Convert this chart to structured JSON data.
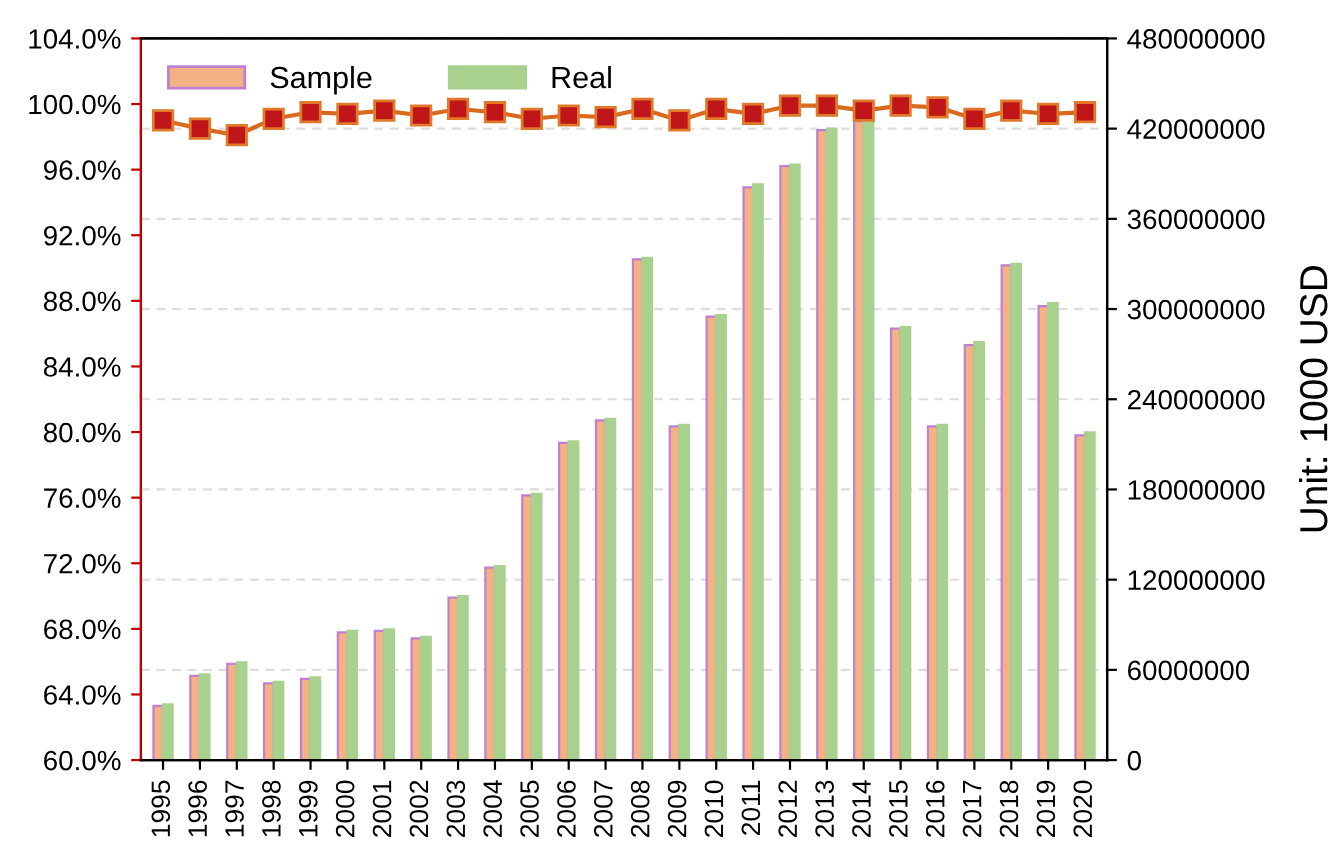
{
  "chart_data": {
    "type": "bar",
    "y2label": "Unit: 1000 USD",
    "categories": [
      "1995",
      "1996",
      "1997",
      "1998",
      "1999",
      "2000",
      "2001",
      "2002",
      "2003",
      "2004",
      "2005",
      "2006",
      "2007",
      "2008",
      "2009",
      "2010",
      "2011",
      "2012",
      "2013",
      "2014",
      "2015",
      "2016",
      "2017",
      "2018",
      "2019",
      "2020"
    ],
    "series": [
      {
        "name": "Sample",
        "axis": "y2",
        "color": "#f4b183",
        "values": [
          36000000,
          56000000,
          64000000,
          51000000,
          54000000,
          85000000,
          86000000,
          81000000,
          108000000,
          128000000,
          176000000,
          211000000,
          226000000,
          333000000,
          222000000,
          295000000,
          381000000,
          395000000,
          419000000,
          425000000,
          287000000,
          222000000,
          276000000,
          329000000,
          302000000,
          216000000
        ]
      },
      {
        "name": "Real",
        "axis": "y2",
        "color": "#a9d18e",
        "values": [
          37000000,
          57000000,
          65000000,
          52000000,
          55000000,
          86000000,
          87000000,
          82000000,
          109000000,
          129000000,
          177000000,
          212000000,
          227000000,
          334000000,
          223000000,
          296000000,
          383000000,
          396000000,
          420000000,
          427000000,
          288000000,
          223000000,
          278000000,
          330000000,
          304000000,
          218000000
        ]
      },
      {
        "type": "line",
        "color": "#c0161a",
        "marker": "square",
        "values": [
          99.0,
          98.5,
          98.1,
          99.1,
          99.5,
          99.4,
          99.6,
          99.3,
          99.7,
          99.5,
          99.1,
          99.3,
          99.2,
          99.7,
          99.0,
          99.7,
          99.4,
          99.9,
          99.9,
          99.6,
          99.9,
          99.8,
          99.1,
          99.6,
          99.4,
          99.5
        ]
      }
    ],
    "ylim": [
      60,
      104
    ],
    "yticks": [
      {
        "value": 60,
        "label": "60.0%"
      },
      {
        "value": 64,
        "label": "64.0%"
      },
      {
        "value": 68,
        "label": "68.0%"
      },
      {
        "value": 72,
        "label": "72.0%"
      },
      {
        "value": 76,
        "label": "76.0%"
      },
      {
        "value": 80,
        "label": "80.0%"
      },
      {
        "value": 84,
        "label": "84.0%"
      },
      {
        "value": 88,
        "label": "88.0%"
      },
      {
        "value": 92,
        "label": "92.0%"
      },
      {
        "value": 96,
        "label": "96.0%"
      },
      {
        "value": 100,
        "label": "100.0%"
      },
      {
        "value": 104,
        "label": "104.0%"
      }
    ],
    "y2lim": [
      0,
      480000000
    ],
    "y2ticks": [
      0,
      60000000,
      120000000,
      180000000,
      240000000,
      300000000,
      360000000,
      420000000,
      480000000
    ],
    "grid": "y",
    "legend": "top left"
  }
}
